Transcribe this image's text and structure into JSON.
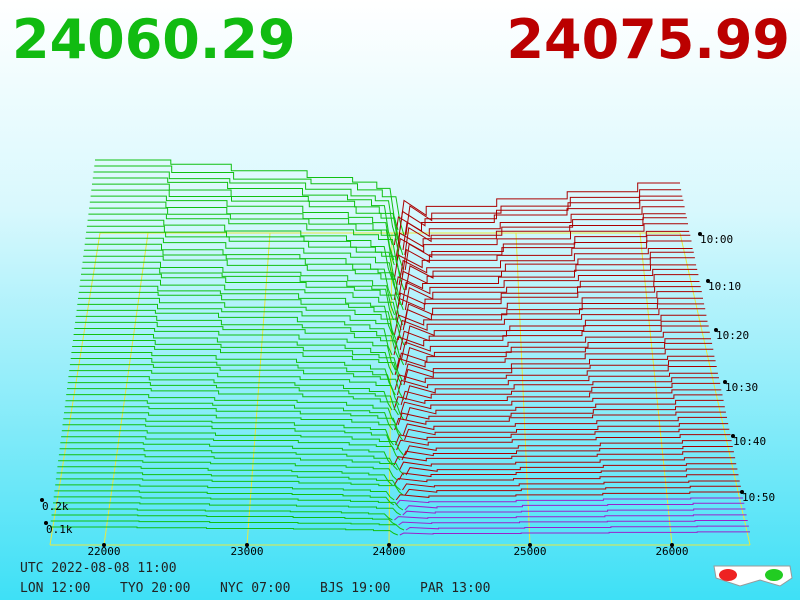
{
  "header": {
    "bid": "24060.29",
    "ask": "24075.99"
  },
  "price_axis": {
    "ticks": [
      "22000",
      "23000",
      "24000",
      "25000",
      "26000"
    ]
  },
  "time_axis": {
    "ticks": [
      "10:00",
      "10:10",
      "10:20",
      "10:30",
      "10:40",
      "10:50"
    ]
  },
  "depth_axis": {
    "ticks": [
      "0.2k",
      "0.1k"
    ]
  },
  "footer": {
    "utc": "UTC 2022-08-08 11:00",
    "clocks": [
      "LON 12:00",
      "TYO 20:00",
      "NYC 07:00",
      "BJS 19:00",
      "PAR 13:00"
    ]
  }
}
